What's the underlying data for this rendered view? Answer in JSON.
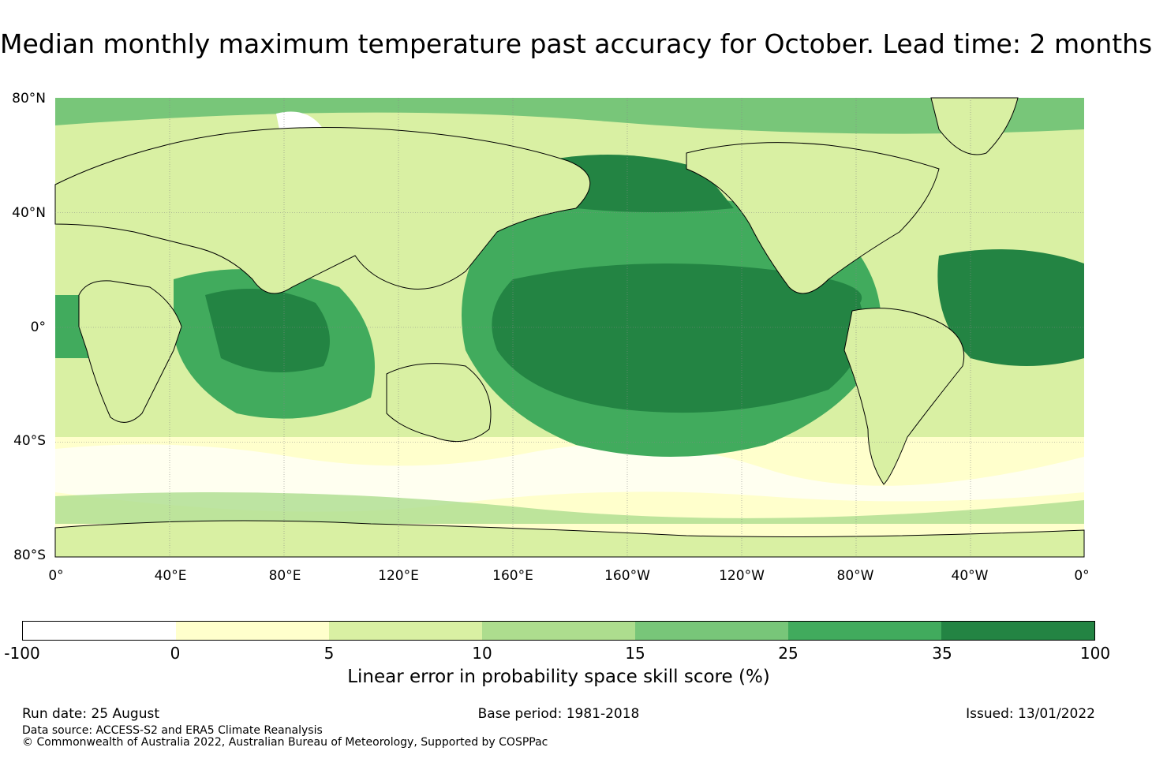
{
  "title": "Median monthly maximum temperature past accuracy for October. Lead time: 2 months",
  "map": {
    "lat_labels": [
      "80°N",
      "40°N",
      "0°",
      "40°S",
      "80°S"
    ],
    "lon_labels": [
      "0°",
      "40°E",
      "80°E",
      "120°E",
      "160°E",
      "160°W",
      "120°W",
      "80°W",
      "40°W",
      "0°"
    ],
    "colors": {
      "neg": "#ffffff",
      "c0": "#ffffcc",
      "c5": "#d9f0a3",
      "c10": "#addd8e",
      "c15": "#78c679",
      "c25": "#41ab5d",
      "c35": "#238443",
      "land_outline": "#000000",
      "grid": "#888888"
    }
  },
  "colorbar": {
    "ticks": [
      "-100",
      "0",
      "5",
      "10",
      "15",
      "25",
      "35",
      "100"
    ],
    "colors": [
      "#ffffff",
      "#ffffcc",
      "#d9f0a3",
      "#addd8e",
      "#78c679",
      "#41ab5d",
      "#238443"
    ],
    "label": "Linear error in probability space skill score (%)"
  },
  "footer": {
    "run_date": "Run date: 25 August",
    "base_period": "Base period: 1981-2018",
    "issued": "Issued: 13/01/2022",
    "data_source": "Data source: ACCESS-S2 and ERA5 Climate Reanalysis",
    "copyright": "© Commonwealth of Australia 2022, Australian Bureau of Meteorology, Supported by COSPPac"
  }
}
